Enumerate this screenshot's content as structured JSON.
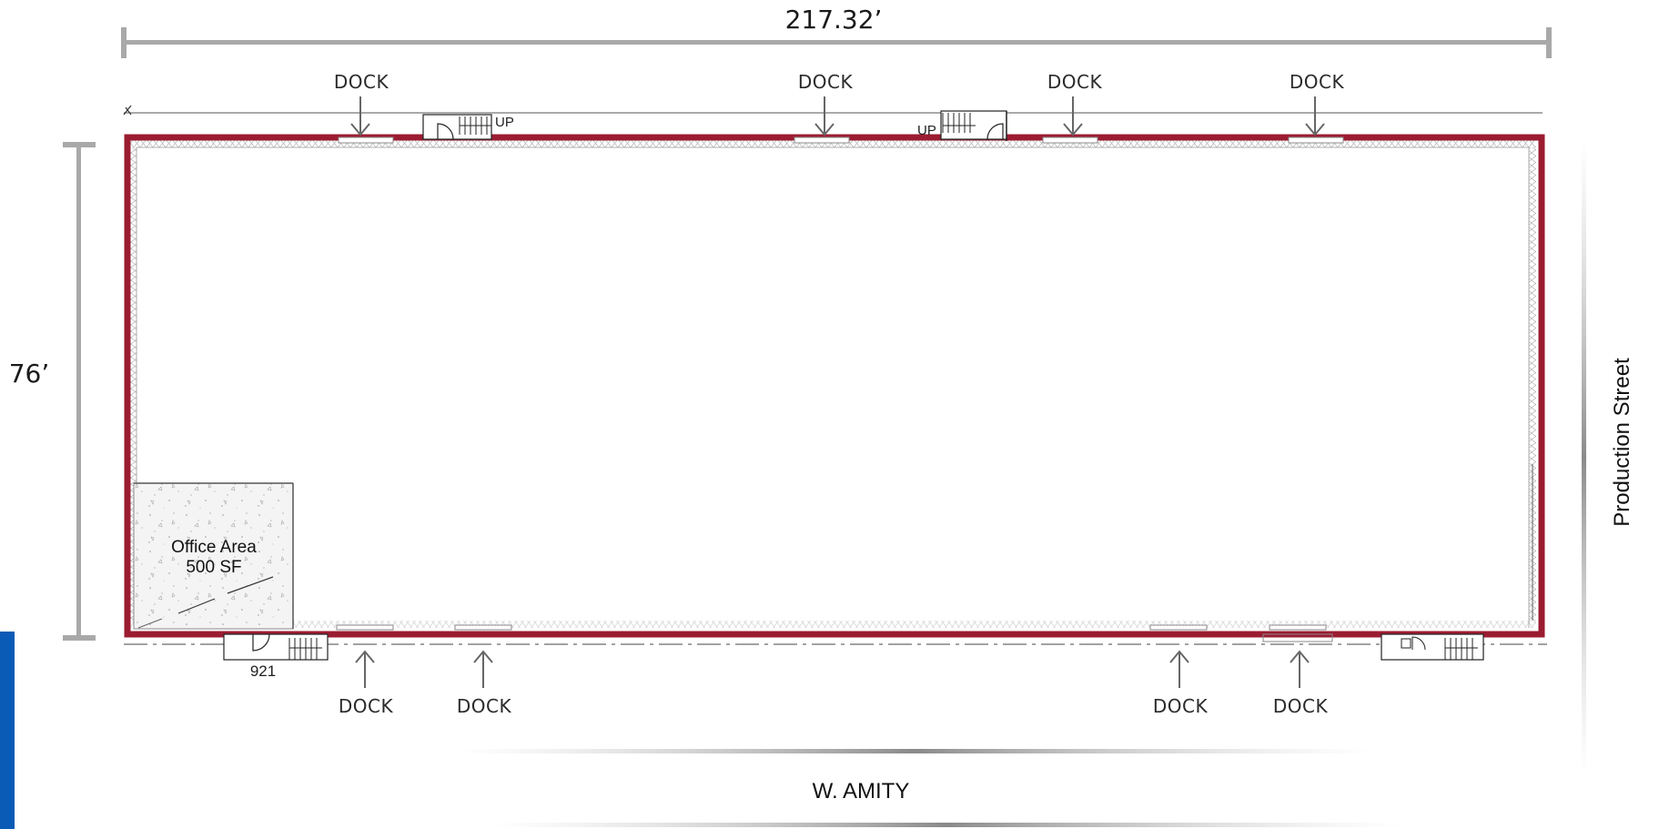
{
  "dimensions": {
    "width_label": "217.32’",
    "depth_label": "76’"
  },
  "docks": {
    "label": "DOCK",
    "top": [
      "DOCK",
      "DOCK",
      "DOCK",
      "DOCK"
    ],
    "bottom": [
      "DOCK",
      "DOCK",
      "DOCK",
      "DOCK"
    ]
  },
  "stairs": {
    "left_label": "UP",
    "right_label": "UP"
  },
  "office": {
    "name": "Office Area",
    "area": "500 SF"
  },
  "unit_number": "921",
  "streets": {
    "south": "W. AMITY",
    "east": "Production Street"
  },
  "colors": {
    "building_outline": "#9b1c31",
    "dimension_bar": "#a9a9a9",
    "accent_tab": "#0a5bb5"
  }
}
